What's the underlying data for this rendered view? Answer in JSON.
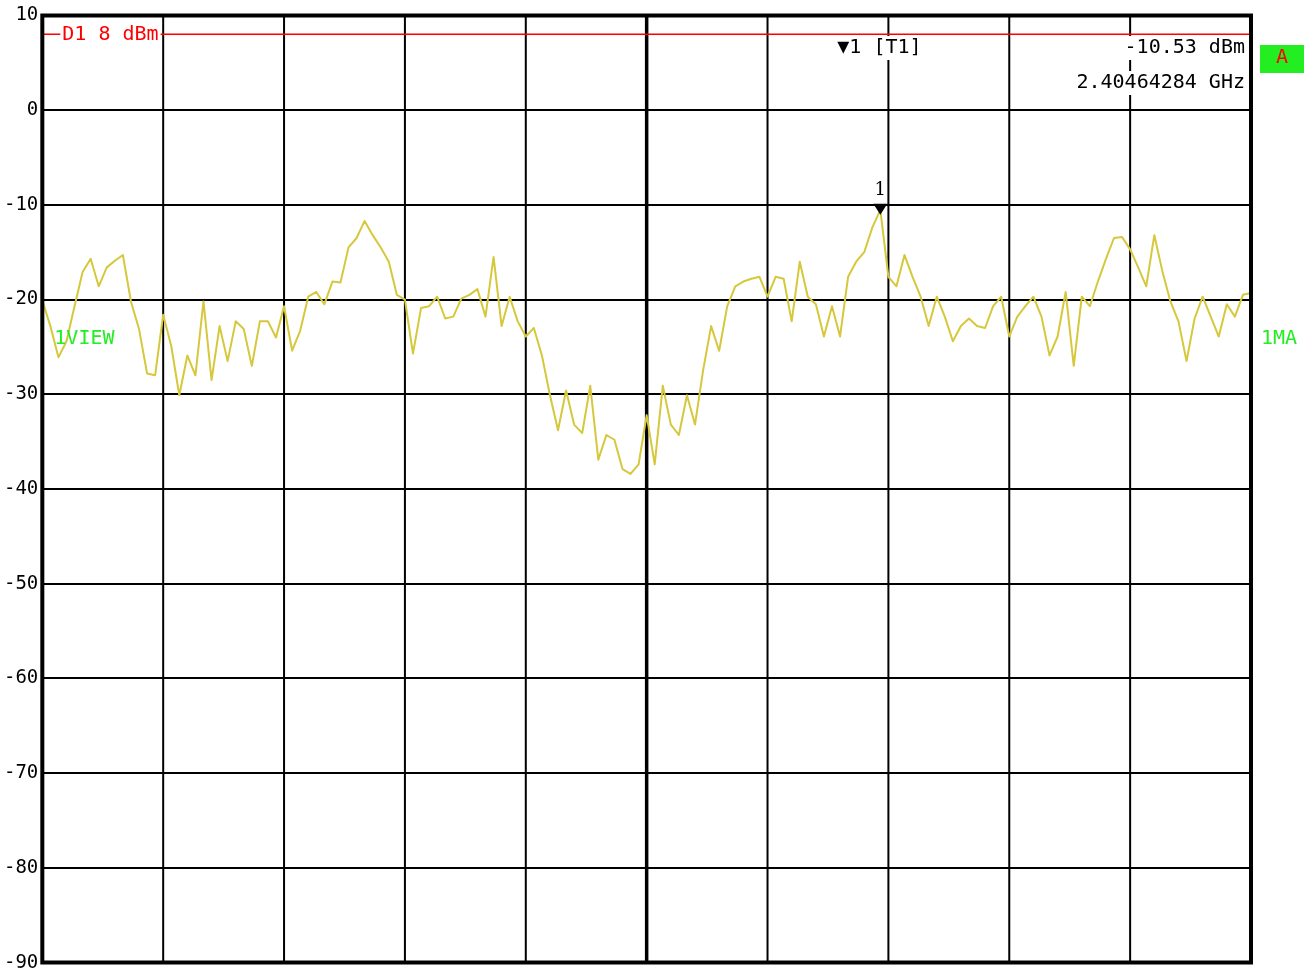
{
  "chart_data": {
    "type": "line",
    "categories": [
      null,
      null,
      null,
      null,
      null,
      null,
      null,
      null,
      null,
      null,
      null,
      null,
      null,
      null,
      null,
      null,
      null,
      null,
      null,
      null,
      null,
      null,
      null,
      null,
      null,
      null,
      null,
      null,
      null,
      null,
      null,
      null,
      null,
      null,
      null,
      null,
      null,
      null,
      null,
      null,
      null,
      null,
      null,
      null,
      null,
      null,
      null,
      null,
      null,
      null,
      null,
      null,
      null,
      null,
      null,
      null,
      null,
      null,
      null,
      null,
      null,
      null,
      null,
      null,
      null,
      null,
      null,
      null,
      null,
      null,
      null,
      null,
      null,
      null,
      null,
      null,
      null,
      null,
      null,
      null,
      null,
      null,
      null,
      null,
      null,
      null,
      null,
      null,
      null,
      null,
      null,
      null,
      null,
      null,
      null,
      null,
      null,
      null,
      null,
      null,
      null,
      null,
      null,
      null,
      null,
      null,
      null,
      null,
      null,
      null,
      null,
      null,
      null,
      null,
      null,
      null,
      null,
      null,
      null,
      null,
      null,
      null,
      null,
      null,
      null,
      null,
      null,
      null,
      null,
      null,
      null,
      null,
      null,
      null,
      null,
      null,
      null,
      null,
      null,
      null,
      null,
      null,
      null,
      null,
      null,
      null,
      null,
      null,
      null,
      null,
      null
    ],
    "ylim": [
      -90,
      10
    ],
    "yticks": [
      -90,
      -80,
      -70,
      -60,
      -50,
      -40,
      -30,
      -20,
      -10,
      0,
      10
    ],
    "tick_labels": "y",
    "grid": true,
    "marker": "none",
    "line_style": "solid",
    "series": [
      {
        "color": "#d6c83c",
        "values": [
          -20.1,
          -22.8,
          -26.1,
          -24.4,
          -20.7,
          -17.1,
          -15.7,
          -18.6,
          -16.6,
          -15.9,
          -15.3,
          -20.2,
          -23.1,
          -27.8,
          -28.0,
          -21.6,
          -24.9,
          -30.1,
          -25.9,
          -28.0,
          -20.2,
          -28.5,
          -22.8,
          -26.5,
          -22.3,
          -23.1,
          -27.0,
          -22.3,
          -22.3,
          -24.0,
          -20.7,
          -25.4,
          -23.3,
          -19.7,
          -19.2,
          -20.5,
          -18.1,
          -18.2,
          -14.5,
          -13.5,
          -11.7,
          -13.2,
          -14.5,
          -16.0,
          -19.5,
          -20.0,
          -25.7,
          -20.9,
          -20.7,
          -19.7,
          -22.0,
          -21.8,
          -19.9,
          -19.5,
          -18.9,
          -21.8,
          -15.5,
          -22.8,
          -19.7,
          -22.3,
          -23.9,
          -23.0,
          -25.9,
          -30.1,
          -33.8,
          -29.6,
          -33.2,
          -34.1,
          -29.1,
          -36.9,
          -34.3,
          -34.8,
          -37.9,
          -38.4,
          -37.4,
          -32.2,
          -37.4,
          -29.1,
          -33.2,
          -34.3,
          -30.1,
          -33.2,
          -27.5,
          -22.8,
          -25.4,
          -20.7,
          -18.6,
          -18.1,
          -17.8,
          -17.6,
          -19.7,
          -17.6,
          -17.8,
          -22.3,
          -16.0,
          -19.7,
          -20.5,
          -23.9,
          -20.7,
          -23.9,
          -17.6,
          -16.0,
          -15.0,
          -12.4,
          -10.53,
          -17.6,
          -18.6,
          -15.3,
          -17.6,
          -19.7,
          -22.8,
          -19.7,
          -21.8,
          -24.4,
          -22.8,
          -22.0,
          -22.8,
          -23.0,
          -20.7,
          -19.7,
          -23.9,
          -21.8,
          -20.7,
          -19.7,
          -21.8,
          -25.9,
          -23.9,
          -19.2,
          -27.0,
          -19.7,
          -20.7,
          -18.1,
          -15.7,
          -13.5,
          -13.4,
          -14.7,
          -16.6,
          -18.6,
          -13.2,
          -17.0,
          -20.2,
          -22.3,
          -26.5,
          -22.0,
          -19.7,
          -21.8,
          -23.9,
          -20.5,
          -21.8,
          -19.5,
          -19.3
        ]
      }
    ],
    "ref_lines": [
      {
        "axis": "y",
        "value": 8,
        "label": "D1 8 dBm",
        "color": "#ff0000"
      }
    ],
    "annotations": [
      "▼1 [T1]",
      "-10.53 dBm",
      "2.40464284 GHz",
      "A",
      "1VIEW",
      "1MA",
      {
        "text": "1",
        "y": -10.53
      }
    ]
  }
}
